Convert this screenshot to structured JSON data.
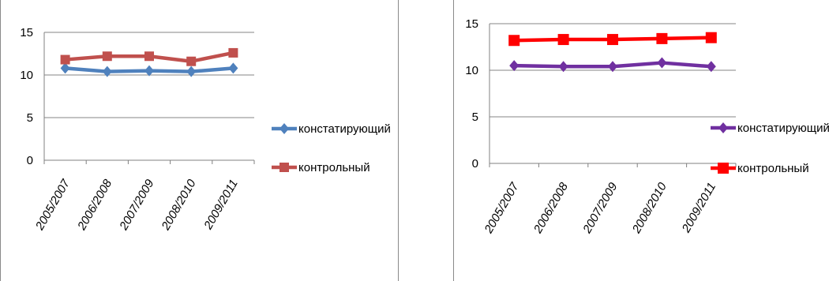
{
  "chart_data": [
    {
      "type": "line",
      "categories": [
        "2005/2007",
        "2006/2008",
        "2007/2009",
        "2008/2010",
        "2009/2011"
      ],
      "series": [
        {
          "name": "констатирующий",
          "values": [
            10.8,
            10.4,
            10.5,
            10.4,
            10.8
          ],
          "color": "#4f81bd",
          "marker": "diamond"
        },
        {
          "name": "контрольный",
          "values": [
            11.8,
            12.2,
            12.2,
            11.6,
            12.6
          ],
          "color": "#c0504d",
          "marker": "square"
        }
      ],
      "yticks": [
        "0",
        "5",
        "10",
        "15"
      ],
      "ylim": [
        0,
        15
      ],
      "grid": true,
      "legend": "right"
    },
    {
      "type": "line",
      "categories": [
        "2005/2007",
        "2006/2008",
        "2007/2009",
        "2008/2010",
        "2009/2011"
      ],
      "series": [
        {
          "name": "констатирующий",
          "values": [
            10.5,
            10.4,
            10.4,
            10.8,
            10.4
          ],
          "color": "#7030a0",
          "marker": "diamond"
        },
        {
          "name": "контрольный",
          "values": [
            13.2,
            13.3,
            13.3,
            13.4,
            13.5
          ],
          "color": "#ff0000",
          "marker": "square"
        }
      ],
      "yticks": [
        "0",
        "5",
        "10",
        "15"
      ],
      "ylim": [
        0,
        15
      ],
      "grid": true,
      "legend": "right"
    }
  ]
}
